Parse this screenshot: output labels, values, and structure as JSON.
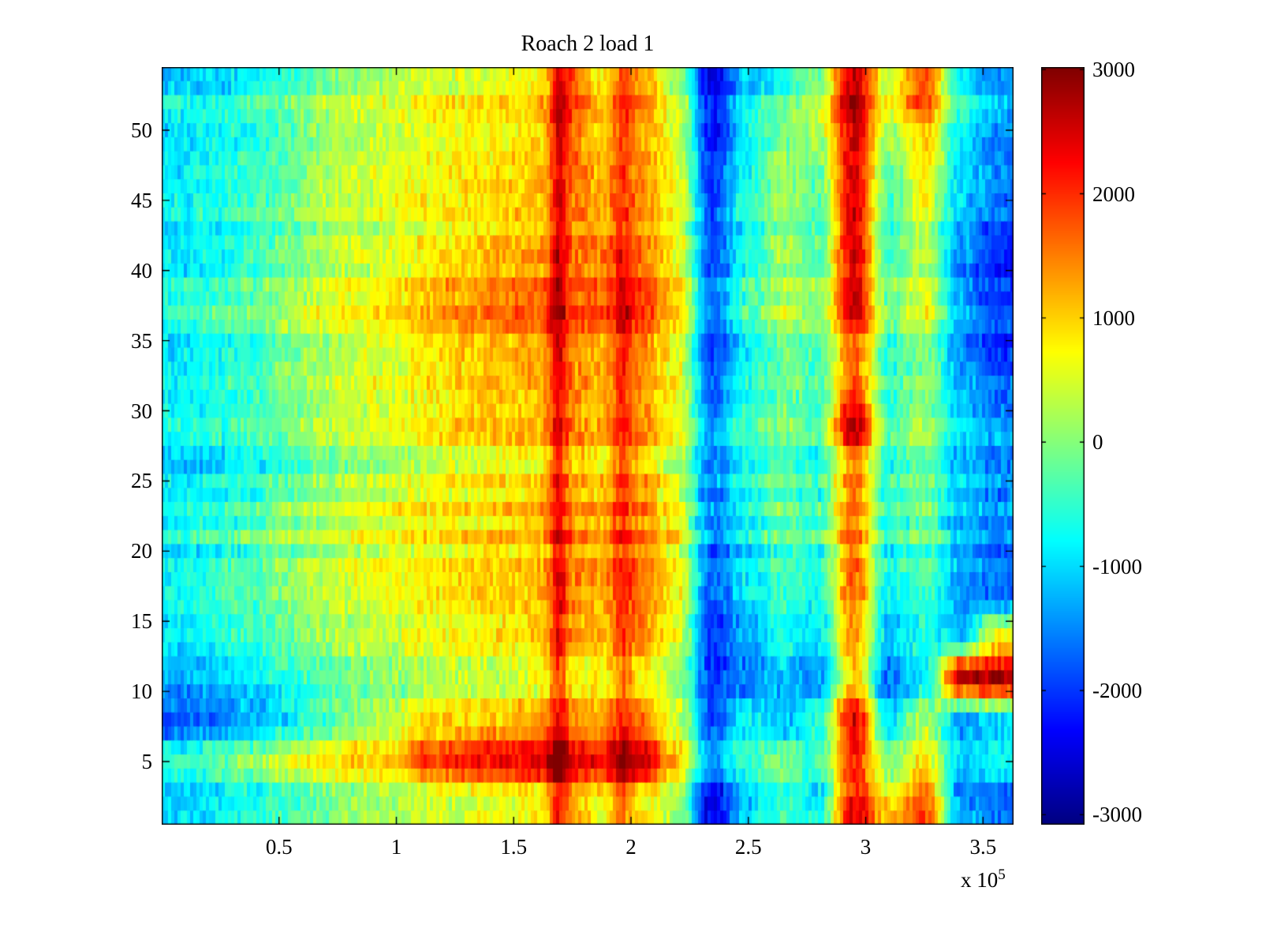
{
  "chart_data": {
    "type": "heatmap",
    "title": "Roach 2 load 1",
    "xlabel": "",
    "ylabel": "",
    "x_range": [
      0,
      363000
    ],
    "y_range": [
      0.5,
      54.5
    ],
    "x_ticks": [
      {
        "value": 50000,
        "label": "0.5"
      },
      {
        "value": 100000,
        "label": "1"
      },
      {
        "value": 150000,
        "label": "1.5"
      },
      {
        "value": 200000,
        "label": "2"
      },
      {
        "value": 250000,
        "label": "2.5"
      },
      {
        "value": 300000,
        "label": "3"
      },
      {
        "value": 350000,
        "label": "3.5"
      }
    ],
    "x_offset_label": {
      "prefix": "x 10",
      "exponent": "5"
    },
    "y_ticks": [
      {
        "value": 5,
        "label": "5"
      },
      {
        "value": 10,
        "label": "10"
      },
      {
        "value": 15,
        "label": "15"
      },
      {
        "value": 20,
        "label": "20"
      },
      {
        "value": 25,
        "label": "25"
      },
      {
        "value": 30,
        "label": "30"
      },
      {
        "value": 35,
        "label": "35"
      },
      {
        "value": 40,
        "label": "40"
      },
      {
        "value": 45,
        "label": "45"
      },
      {
        "value": 50,
        "label": "50"
      }
    ],
    "colormap": "jet",
    "colorbar": {
      "range": [
        -3080,
        3020
      ],
      "ticks": [
        {
          "value": 3000,
          "label": "3000"
        },
        {
          "value": 2000,
          "label": "2000"
        },
        {
          "value": 1000,
          "label": "1000"
        },
        {
          "value": 0,
          "label": "0"
        },
        {
          "value": -1000,
          "label": "-1000"
        },
        {
          "value": -2000,
          "label": "-2000"
        },
        {
          "value": -3000,
          "label": "-3000"
        }
      ]
    },
    "grid": {
      "cols": 24,
      "rows": 18,
      "row_order": "top-to-bottom",
      "x_extent": [
        0,
        363000
      ],
      "y_extent": [
        54.5,
        0.5
      ],
      "values": [
        [
          -900,
          -800,
          -600,
          -400,
          100,
          300,
          400,
          600,
          700,
          800,
          900,
          1900,
          900,
          1600,
          400,
          -2400,
          -900,
          -400,
          200,
          2800,
          600,
          2000,
          -600,
          -1200
        ],
        [
          -900,
          -750,
          -550,
          -300,
          150,
          350,
          450,
          650,
          750,
          850,
          950,
          1700,
          1000,
          1400,
          500,
          -2200,
          -800,
          0,
          300,
          2600,
          300,
          1200,
          -800,
          -1400
        ],
        [
          -850,
          -700,
          -500,
          -250,
          200,
          400,
          500,
          700,
          800,
          900,
          1000,
          1500,
          1100,
          1300,
          600,
          -2000,
          -700,
          200,
          -200,
          2400,
          -300,
          800,
          -900,
          -1500
        ],
        [
          -800,
          -650,
          -450,
          -200,
          250,
          450,
          550,
          750,
          850,
          950,
          1050,
          1400,
          1200,
          1400,
          700,
          -1900,
          -600,
          100,
          -300,
          2500,
          -400,
          500,
          -1100,
          -1700
        ],
        [
          -800,
          -600,
          -400,
          -100,
          300,
          500,
          600,
          900,
          1100,
          1300,
          1400,
          1700,
          1500,
          1700,
          800,
          -1800,
          -500,
          300,
          -200,
          2600,
          -300,
          400,
          -1300,
          -2000
        ],
        [
          -750,
          -550,
          -350,
          0,
          350,
          550,
          700,
          1000,
          1200,
          1400,
          1500,
          1600,
          1600,
          1800,
          900,
          -1700,
          -600,
          200,
          -100,
          2400,
          -200,
          500,
          -1400,
          -2100
        ],
        [
          -750,
          -500,
          -300,
          100,
          400,
          600,
          700,
          1000,
          1300,
          1400,
          1500,
          1700,
          1500,
          1700,
          900,
          -1800,
          -700,
          100,
          -200,
          2000,
          -300,
          300,
          -1300,
          -1900
        ],
        [
          -700,
          -500,
          -300,
          100,
          400,
          600,
          700,
          900,
          1100,
          1200,
          1300,
          1500,
          1300,
          1500,
          800,
          -1600,
          -600,
          0,
          -300,
          1800,
          -400,
          200,
          -1100,
          -1600
        ],
        [
          -800,
          -700,
          -500,
          -200,
          200,
          400,
          500,
          700,
          900,
          1000,
          1100,
          1300,
          1100,
          1300,
          600,
          -1500,
          -500,
          -100,
          -400,
          2700,
          -300,
          100,
          -1000,
          -1400
        ],
        [
          -900,
          -800,
          -600,
          -400,
          0,
          200,
          300,
          500,
          700,
          800,
          900,
          1200,
          1000,
          1200,
          500,
          -1400,
          -600,
          -200,
          -500,
          1500,
          -400,
          0,
          -1000,
          -1300
        ],
        [
          -700,
          -500,
          -300,
          0,
          300,
          500,
          600,
          800,
          900,
          1000,
          1100,
          1400,
          1200,
          1400,
          700,
          -1500,
          -700,
          -100,
          -400,
          1600,
          -500,
          -100,
          -1100,
          -1400
        ],
        [
          -700,
          -500,
          -250,
          50,
          350,
          550,
          650,
          850,
          950,
          1050,
          1150,
          1500,
          1300,
          1500,
          800,
          -1600,
          -800,
          -200,
          -500,
          1700,
          -600,
          -200,
          -1200,
          -1500
        ],
        [
          -650,
          -450,
          -250,
          100,
          400,
          550,
          650,
          850,
          1000,
          1100,
          1200,
          1500,
          1300,
          1600,
          800,
          -1700,
          -900,
          -300,
          -600,
          1800,
          -700,
          -300,
          -1300,
          -1600
        ],
        [
          -650,
          -450,
          -200,
          100,
          400,
          600,
          700,
          900,
          1000,
          1100,
          1200,
          1600,
          1400,
          1700,
          900,
          -1800,
          -1000,
          -400,
          -700,
          1500,
          -800,
          -400,
          -800,
          800
        ],
        [
          -1200,
          -1100,
          -900,
          -600,
          -300,
          -100,
          0,
          200,
          300,
          400,
          500,
          800,
          600,
          800,
          200,
          -2000,
          -1600,
          -1100,
          -1400,
          1000,
          -1700,
          -900,
          2600,
          2800
        ],
        [
          -1800,
          -1600,
          -1300,
          -900,
          -400,
          0,
          300,
          900,
          1000,
          1100,
          1200,
          1400,
          1200,
          1500,
          600,
          -1900,
          -800,
          -1200,
          -600,
          2500,
          -900,
          400,
          -1200,
          -900
        ],
        [
          -800,
          -500,
          -200,
          200,
          500,
          700,
          800,
          1600,
          1900,
          2000,
          2100,
          2200,
          1900,
          2300,
          900,
          -1600,
          -700,
          -300,
          -800,
          1800,
          -400,
          600,
          -1300,
          -1000
        ],
        [
          -900,
          -700,
          -500,
          -200,
          100,
          300,
          400,
          600,
          700,
          800,
          900,
          1400,
          800,
          1000,
          300,
          -2300,
          -900,
          -200,
          -600,
          2600,
          1200,
          2000,
          -1100,
          -1500
        ]
      ]
    },
    "vlines": [
      {
        "x": 169000,
        "amp": 1100,
        "sigma": 2600
      },
      {
        "x": 196000,
        "amp": 800,
        "sigma": 3200
      }
    ],
    "texture": {
      "seed": 1337,
      "cell_noise": 470,
      "row_noise": 320,
      "cells_x": 270,
      "rows_y": 54
    }
  }
}
